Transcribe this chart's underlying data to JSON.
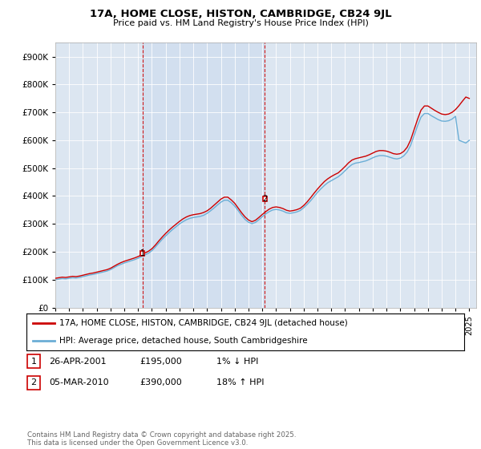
{
  "title": "17A, HOME CLOSE, HISTON, CAMBRIDGE, CB24 9JL",
  "subtitle": "Price paid vs. HM Land Registry's House Price Index (HPI)",
  "ylabel_ticks": [
    0,
    100000,
    200000,
    300000,
    400000,
    500000,
    600000,
    700000,
    800000,
    900000
  ],
  "ylabel_labels": [
    "£0",
    "£100K",
    "£200K",
    "£300K",
    "£400K",
    "£500K",
    "£600K",
    "£700K",
    "£800K",
    "£900K"
  ],
  "ylim": [
    0,
    950000
  ],
  "xlim_start": 1995.0,
  "xlim_end": 2025.5,
  "x_ticks": [
    1995,
    1996,
    1997,
    1998,
    1999,
    2000,
    2001,
    2002,
    2003,
    2004,
    2005,
    2006,
    2007,
    2008,
    2009,
    2010,
    2011,
    2012,
    2013,
    2014,
    2015,
    2016,
    2017,
    2018,
    2019,
    2020,
    2021,
    2022,
    2023,
    2024,
    2025
  ],
  "bg_color": "#dce6f1",
  "highlight_color": "#cad9ee",
  "line1_color": "#cc0000",
  "line2_color": "#6baed6",
  "vline_color": "#cc0000",
  "marker1_x": 2001.32,
  "marker1_y": 195000,
  "marker2_x": 2010.18,
  "marker2_y": 390000,
  "legend_line1": "17A, HOME CLOSE, HISTON, CAMBRIDGE, CB24 9JL (detached house)",
  "legend_line2": "HPI: Average price, detached house, South Cambridgeshire",
  "table_row1": [
    "1",
    "26-APR-2001",
    "£195,000",
    "1% ↓ HPI"
  ],
  "table_row2": [
    "2",
    "05-MAR-2010",
    "£390,000",
    "18% ↑ HPI"
  ],
  "copyright": "Contains HM Land Registry data © Crown copyright and database right 2025.\nThis data is licensed under the Open Government Licence v3.0.",
  "red_years": [
    1995.0,
    1995.25,
    1995.5,
    1995.75,
    1996.0,
    1996.25,
    1996.5,
    1996.75,
    1997.0,
    1997.25,
    1997.5,
    1997.75,
    1998.0,
    1998.25,
    1998.5,
    1998.75,
    1999.0,
    1999.25,
    1999.5,
    1999.75,
    2000.0,
    2000.25,
    2000.5,
    2000.75,
    2001.0,
    2001.25,
    2001.5,
    2001.75,
    2002.0,
    2002.25,
    2002.5,
    2002.75,
    2003.0,
    2003.25,
    2003.5,
    2003.75,
    2004.0,
    2004.25,
    2004.5,
    2004.75,
    2005.0,
    2005.25,
    2005.5,
    2005.75,
    2006.0,
    2006.25,
    2006.5,
    2006.75,
    2007.0,
    2007.25,
    2007.5,
    2007.75,
    2008.0,
    2008.25,
    2008.5,
    2008.75,
    2009.0,
    2009.25,
    2009.5,
    2009.75,
    2010.0,
    2010.25,
    2010.5,
    2010.75,
    2011.0,
    2011.25,
    2011.5,
    2011.75,
    2012.0,
    2012.25,
    2012.5,
    2012.75,
    2013.0,
    2013.25,
    2013.5,
    2013.75,
    2014.0,
    2014.25,
    2014.5,
    2014.75,
    2015.0,
    2015.25,
    2015.5,
    2015.75,
    2016.0,
    2016.25,
    2016.5,
    2016.75,
    2017.0,
    2017.25,
    2017.5,
    2017.75,
    2018.0,
    2018.25,
    2018.5,
    2018.75,
    2019.0,
    2019.25,
    2019.5,
    2019.75,
    2020.0,
    2020.25,
    2020.5,
    2020.75,
    2021.0,
    2021.25,
    2021.5,
    2021.75,
    2022.0,
    2022.25,
    2022.5,
    2022.75,
    2023.0,
    2023.25,
    2023.5,
    2023.75,
    2024.0,
    2024.25,
    2024.5,
    2024.75,
    2025.0
  ],
  "red_vals": [
    105000,
    107000,
    109000,
    108000,
    110000,
    112000,
    111000,
    113000,
    116000,
    119000,
    122000,
    124000,
    127000,
    130000,
    133000,
    136000,
    141000,
    148000,
    155000,
    161000,
    166000,
    170000,
    174000,
    178000,
    183000,
    189000,
    196000,
    202000,
    211000,
    224000,
    239000,
    253000,
    266000,
    278000,
    289000,
    299000,
    309000,
    318000,
    325000,
    330000,
    333000,
    335000,
    337000,
    341000,
    347000,
    356000,
    367000,
    378000,
    389000,
    396000,
    396000,
    386000,
    374000,
    357000,
    340000,
    325000,
    314000,
    308000,
    313000,
    323000,
    334000,
    344000,
    353000,
    359000,
    361000,
    359000,
    355000,
    349000,
    346000,
    348000,
    351000,
    356000,
    366000,
    379000,
    394000,
    410000,
    425000,
    439000,
    452000,
    462000,
    470000,
    477000,
    483000,
    494000,
    506000,
    519000,
    529000,
    534000,
    537000,
    540000,
    543000,
    548000,
    554000,
    560000,
    563000,
    563000,
    561000,
    557000,
    552000,
    550000,
    552000,
    560000,
    575000,
    601000,
    638000,
    675000,
    708000,
    723000,
    723000,
    715000,
    707000,
    700000,
    694000,
    692000,
    694000,
    700000,
    710000,
    724000,
    740000,
    755000,
    750000
  ],
  "blue_years": [
    1995.0,
    1995.25,
    1995.5,
    1995.75,
    1996.0,
    1996.25,
    1996.5,
    1996.75,
    1997.0,
    1997.25,
    1997.5,
    1997.75,
    1998.0,
    1998.25,
    1998.5,
    1998.75,
    1999.0,
    1999.25,
    1999.5,
    1999.75,
    2000.0,
    2000.25,
    2000.5,
    2000.75,
    2001.0,
    2001.25,
    2001.5,
    2001.75,
    2002.0,
    2002.25,
    2002.5,
    2002.75,
    2003.0,
    2003.25,
    2003.5,
    2003.75,
    2004.0,
    2004.25,
    2004.5,
    2004.75,
    2005.0,
    2005.25,
    2005.5,
    2005.75,
    2006.0,
    2006.25,
    2006.5,
    2006.75,
    2007.0,
    2007.25,
    2007.5,
    2007.75,
    2008.0,
    2008.25,
    2008.5,
    2008.75,
    2009.0,
    2009.25,
    2009.5,
    2009.75,
    2010.0,
    2010.25,
    2010.5,
    2010.75,
    2011.0,
    2011.25,
    2011.5,
    2011.75,
    2012.0,
    2012.25,
    2012.5,
    2012.75,
    2013.0,
    2013.25,
    2013.5,
    2013.75,
    2014.0,
    2014.25,
    2014.5,
    2014.75,
    2015.0,
    2015.25,
    2015.5,
    2015.75,
    2016.0,
    2016.25,
    2016.5,
    2016.75,
    2017.0,
    2017.25,
    2017.5,
    2017.75,
    2018.0,
    2018.25,
    2018.5,
    2018.75,
    2019.0,
    2019.25,
    2019.5,
    2019.75,
    2020.0,
    2020.25,
    2020.5,
    2020.75,
    2021.0,
    2021.25,
    2021.5,
    2021.75,
    2022.0,
    2022.25,
    2022.5,
    2022.75,
    2023.0,
    2023.25,
    2023.5,
    2023.75,
    2024.0,
    2024.25,
    2024.5,
    2024.75,
    2025.0
  ],
  "blue_vals": [
    100000,
    102000,
    104000,
    103000,
    105000,
    107000,
    106000,
    108000,
    111000,
    114000,
    117000,
    119000,
    122000,
    125000,
    128000,
    131000,
    136000,
    143000,
    150000,
    155000,
    160000,
    164000,
    168000,
    172000,
    177000,
    183000,
    189000,
    195000,
    204000,
    217000,
    231000,
    245000,
    257000,
    269000,
    280000,
    290000,
    300000,
    308000,
    315000,
    320000,
    323000,
    325000,
    327000,
    331000,
    338000,
    347000,
    357000,
    368000,
    378000,
    385000,
    385000,
    376000,
    364000,
    348000,
    331000,
    316000,
    306000,
    301000,
    305000,
    315000,
    326000,
    336000,
    344000,
    350000,
    352000,
    350000,
    346000,
    340000,
    338000,
    340000,
    343000,
    348000,
    358000,
    370000,
    383000,
    398000,
    413000,
    426000,
    438000,
    448000,
    455000,
    462000,
    469000,
    479000,
    491000,
    503000,
    513000,
    518000,
    520000,
    523000,
    526000,
    531000,
    537000,
    542000,
    545000,
    545000,
    543000,
    539000,
    535000,
    533000,
    536000,
    544000,
    558000,
    582000,
    617000,
    652000,
    683000,
    696000,
    696000,
    688000,
    681000,
    674000,
    669000,
    668000,
    670000,
    676000,
    686000,
    600000,
    595000,
    590000,
    600000
  ]
}
